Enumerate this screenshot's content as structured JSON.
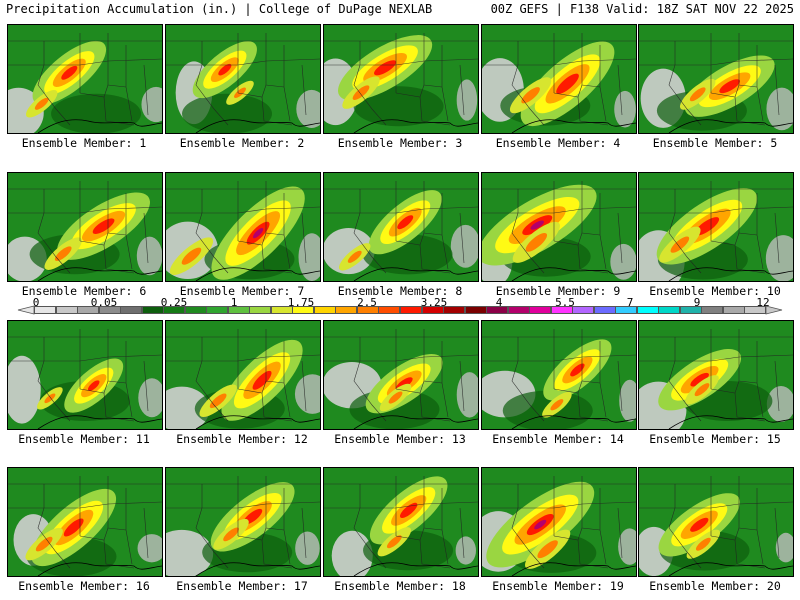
{
  "header": {
    "title": "Precipitation Accumulation (in.) | College of DuPage NEXLAB",
    "valid": "00Z GEFS | F138 Valid: 18Z SAT NOV 22 2025"
  },
  "panels": [
    {
      "label": "Ensemble Member: 1",
      "intensity": 0.55
    },
    {
      "label": "Ensemble Member: 2",
      "intensity": 0.45
    },
    {
      "label": "Ensemble Member: 3",
      "intensity": 0.7
    },
    {
      "label": "Ensemble Member: 4",
      "intensity": 0.8
    },
    {
      "label": "Ensemble Member: 5",
      "intensity": 0.65
    },
    {
      "label": "Ensemble Member: 6",
      "intensity": 0.7
    },
    {
      "label": "Ensemble Member: 7",
      "intensity": 0.85
    },
    {
      "label": "Ensemble Member: 8",
      "intensity": 0.55
    },
    {
      "label": "Ensemble Member: 9",
      "intensity": 0.95
    },
    {
      "label": "Ensemble Member: 10",
      "intensity": 0.8
    },
    {
      "label": "Ensemble Member: 11",
      "intensity": 0.4
    },
    {
      "label": "Ensemble Member: 12",
      "intensity": 0.7
    },
    {
      "label": "Ensemble Member: 13",
      "intensity": 0.55
    },
    {
      "label": "Ensemble Member: 14",
      "intensity": 0.5
    },
    {
      "label": "Ensemble Member: 15",
      "intensity": 0.6
    },
    {
      "label": "Ensemble Member: 16",
      "intensity": 0.7
    },
    {
      "label": "Ensemble Member: 17",
      "intensity": 0.65
    },
    {
      "label": "Ensemble Member: 18",
      "intensity": 0.6
    },
    {
      "label": "Ensemble Member: 19",
      "intensity": 0.9
    },
    {
      "label": "Ensemble Member: 20",
      "intensity": 0.6
    }
  ],
  "colorbar": {
    "labels": [
      "0",
      "0.05",
      "0.25",
      "1",
      "1.75",
      "2.5",
      "3.25",
      "4",
      "5.5",
      "7",
      "9",
      "12"
    ],
    "colors": [
      "#e6e6e6",
      "#c8c8c8",
      "#a8a8a8",
      "#8c8c8c",
      "#6f6f6f",
      "#0d5e0d",
      "#157a15",
      "#1f8a1f",
      "#2fa52f",
      "#5fc13f",
      "#9ad641",
      "#d7e52f",
      "#fffa14",
      "#ffd400",
      "#ffa500",
      "#ff7f00",
      "#ff4d00",
      "#ff1a00",
      "#d40000",
      "#a30000",
      "#7a0000",
      "#8b0047",
      "#b3006b",
      "#e0009c",
      "#ff33ff",
      "#b266ff",
      "#6b6bff",
      "#33ccff",
      "#00ffff",
      "#00d7c8",
      "#20b2aa",
      "#808080",
      "#a9a9a9",
      "#c8c8c8"
    ]
  }
}
